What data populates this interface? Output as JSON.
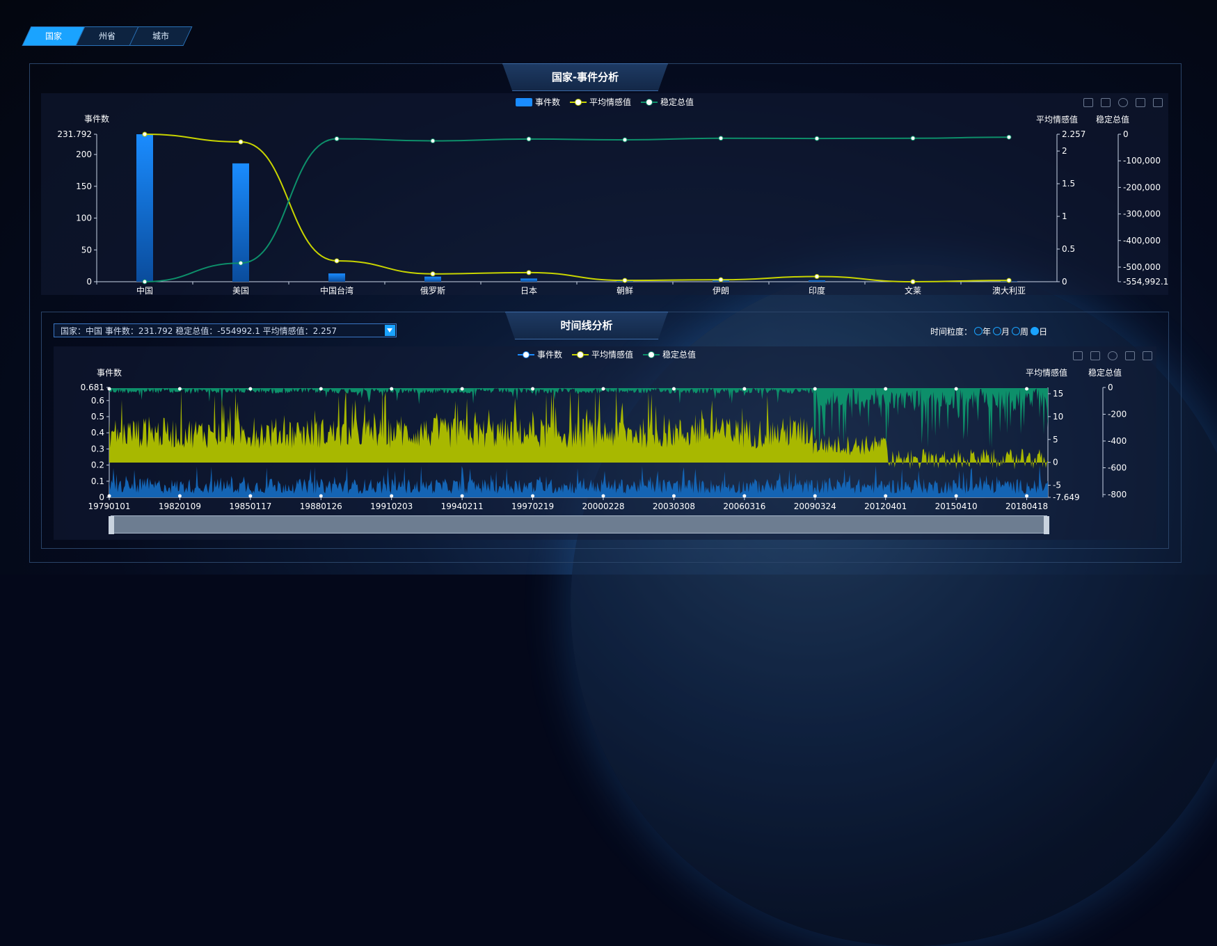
{
  "tabs": [
    {
      "label": "国家",
      "active": true
    },
    {
      "label": "州省",
      "active": false
    },
    {
      "label": "城市",
      "active": false
    }
  ],
  "panel1": {
    "title": "国家-事件分析"
  },
  "panel2": {
    "title": "时间线分析"
  },
  "colors": {
    "bar": "#1a8cff",
    "avg": "#c8d400",
    "stable": "#0d8f6a"
  },
  "legend": {
    "events": "事件数",
    "avg": "平均情感值",
    "stable": "稳定总值"
  },
  "info": {
    "text": "国家：中国 事件数：231.792 稳定总值：-554992.1 平均情感值：2.257"
  },
  "granularity": {
    "label": "时间粒度：",
    "options": [
      "年",
      "月",
      "周",
      "日"
    ],
    "selected": "日"
  },
  "chart_data": [
    {
      "type": "bar",
      "categories": [
        "中国",
        "美国",
        "中国台湾",
        "俄罗斯",
        "日本",
        "朝鲜",
        "伊朗",
        "印度",
        "文莱",
        "澳大利亚"
      ],
      "ylabel_left": "事件数",
      "ylabel_right1": "平均情感值",
      "ylabel_right2": "稳定总值",
      "ylim": [
        0,
        231.792
      ],
      "ylim_right1": [
        0,
        2.257
      ],
      "ylim_right2": [
        -554992.1,
        0
      ],
      "yticks": [
        "0",
        "50",
        "100",
        "150",
        "200",
        "231.792"
      ],
      "yticks_r1": [
        "0",
        "0.5",
        "1",
        "1.5",
        "2",
        "2.257"
      ],
      "yticks_r2": [
        "-554,992.1",
        "-500,000",
        "-400,000",
        "-300,000",
        "-200,000",
        "-100,000",
        "0"
      ],
      "series": [
        {
          "name": "事件数",
          "type": "bar",
          "values": [
            231.792,
            186,
            13,
            8,
            5,
            3,
            3,
            2,
            0.3,
            0.5
          ]
        },
        {
          "name": "平均情感值",
          "type": "line",
          "values": [
            2.257,
            2.14,
            0.32,
            0.12,
            0.14,
            0.02,
            0.03,
            0.08,
            0,
            0.02
          ]
        },
        {
          "name": "稳定总值",
          "type": "line",
          "values": [
            -554992.1,
            -485000,
            -17000,
            -25000,
            -18000,
            -21000,
            -15000,
            -16000,
            -15000,
            -11000
          ]
        }
      ]
    },
    {
      "type": "area",
      "x_ticks": [
        "19790101",
        "19820109",
        "19850117",
        "19880126",
        "19910203",
        "19940211",
        "19970219",
        "20000228",
        "20030308",
        "20060316",
        "20090324",
        "20120401",
        "20150410",
        "20180418"
      ],
      "ylabel_left": "事件数",
      "ylabel_right1": "平均情感值",
      "ylabel_right2": "稳定总值",
      "yticks": [
        "0",
        "0.1",
        "0.2",
        "0.3",
        "0.4",
        "0.5",
        "0.6",
        "0.681"
      ],
      "yticks_r1": [
        "-7.649",
        "-5",
        "0",
        "5",
        "10",
        "15"
      ],
      "yticks_r2": [
        "-800",
        "-600",
        "-400",
        "-200",
        "0"
      ],
      "ylim": [
        0,
        0.681
      ],
      "ylim_right1": [
        -7.649,
        15
      ],
      "ylim_right2": [
        -800,
        0
      ],
      "series": [
        {
          "name": "事件数"
        },
        {
          "name": "平均情感值"
        },
        {
          "name": "稳定总值"
        }
      ]
    }
  ]
}
